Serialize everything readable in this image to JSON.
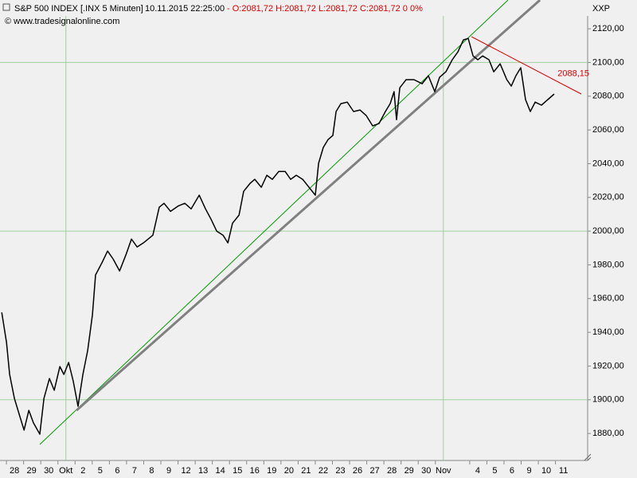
{
  "chart_data": {
    "type": "line",
    "title": "S&P 500 INDEX [.INX  5 Minuten]",
    "timestamp": "10.11.2015 22:25:00",
    "quote": "- O:2081,72 H:2081,72 L:2081,72 C:2081,72 0 0%",
    "source": "© www.tradesignalonline.com",
    "corner_label": "XXP",
    "xlim": [
      -0.84,
      33.41
    ],
    "ylim": [
      1864,
      2127.6
    ],
    "xticks": [
      {
        "value": 0,
        "label": "28"
      },
      {
        "value": 1,
        "label": "29"
      },
      {
        "value": 2,
        "label": "30"
      },
      {
        "value": 3,
        "label": "Okt"
      },
      {
        "value": 4,
        "label": "2"
      },
      {
        "value": 5,
        "label": "5"
      },
      {
        "value": 6,
        "label": "6"
      },
      {
        "value": 7,
        "label": "7"
      },
      {
        "value": 8,
        "label": "8"
      },
      {
        "value": 9,
        "label": "9"
      },
      {
        "value": 10,
        "label": "12"
      },
      {
        "value": 11,
        "label": "13"
      },
      {
        "value": 12,
        "label": "14"
      },
      {
        "value": 13,
        "label": "15"
      },
      {
        "value": 14,
        "label": "16"
      },
      {
        "value": 15,
        "label": "19"
      },
      {
        "value": 16,
        "label": "20"
      },
      {
        "value": 17,
        "label": "21"
      },
      {
        "value": 18,
        "label": "22"
      },
      {
        "value": 19,
        "label": "23"
      },
      {
        "value": 20,
        "label": "26"
      },
      {
        "value": 21,
        "label": "27"
      },
      {
        "value": 22,
        "label": "28"
      },
      {
        "value": 23,
        "label": "29"
      },
      {
        "value": 24,
        "label": "30"
      },
      {
        "value": 25,
        "label": "Nov"
      },
      {
        "value": 27,
        "label": "4"
      },
      {
        "value": 28,
        "label": "5"
      },
      {
        "value": 29,
        "label": "6"
      },
      {
        "value": 30,
        "label": "9"
      },
      {
        "value": 31,
        "label": "10"
      },
      {
        "value": 32,
        "label": "11"
      }
    ],
    "yticks": [
      {
        "value": 1880,
        "label": "1880,00"
      },
      {
        "value": 1900,
        "label": "1900,00"
      },
      {
        "value": 1920,
        "label": "1920,00"
      },
      {
        "value": 1940,
        "label": "1940,00"
      },
      {
        "value": 1960,
        "label": "1960,00"
      },
      {
        "value": 1980,
        "label": "1980,00"
      },
      {
        "value": 2000,
        "label": "2000,00"
      },
      {
        "value": 2020,
        "label": "2020,00"
      },
      {
        "value": 2040,
        "label": "2040,00"
      },
      {
        "value": 2060,
        "label": "2060,00"
      },
      {
        "value": 2080,
        "label": "2080,00"
      },
      {
        "value": 2100,
        "label": "2100,00"
      },
      {
        "value": 2120,
        "label": "2120,00"
      }
    ],
    "ygrid": [
      1900,
      2000,
      2100
    ],
    "xgrid": [
      3,
      25
    ],
    "series": [
      {
        "color": "#000000",
        "x": [
          -0.74,
          -0.46,
          -0.28,
          0,
          0.28,
          0.56,
          0.84,
          1.11,
          1.48,
          1.72,
          2.04,
          2.32,
          2.65,
          2.88,
          3.16,
          3.43,
          3.71,
          3.99,
          4.27,
          4.55,
          4.73,
          5.1,
          5.43,
          5.75,
          6.13,
          6.5,
          6.82,
          7.15,
          7.52,
          8.07,
          8.44,
          8.72,
          9.1,
          9.56,
          9.93,
          10.3,
          10.77,
          11.14,
          11.46,
          11.79,
          12.16,
          12.44,
          12.71,
          13.09,
          13.36,
          13.74,
          14.01,
          14.39,
          14.71,
          15.03,
          15.41,
          15.78,
          16.1,
          16.43,
          16.8,
          17.17,
          17.54,
          17.73,
          18.0,
          18.28,
          18.56,
          18.75,
          19.03,
          19.4,
          19.77,
          20.14,
          20.51,
          20.88,
          21.25,
          21.62,
          21.9,
          22.13,
          22.27,
          22.46,
          22.83,
          23.29,
          23.76,
          24.13,
          24.5,
          24.78,
          25.15,
          25.52,
          25.85,
          26.17,
          26.45,
          26.73,
          27.01,
          27.29,
          27.66,
          27.94,
          28.31,
          28.7,
          28.96,
          29.23,
          29.51,
          29.79,
          30.07,
          30.35,
          30.72,
          31.09,
          31.46
        ],
        "values": [
          1951.8,
          1933.9,
          1915,
          1900.8,
          1891.4,
          1882,
          1893.7,
          1886.3,
          1879.6,
          1900.8,
          1912.6,
          1905.6,
          1919.7,
          1915,
          1922.1,
          1911,
          1896.1,
          1915,
          1929.2,
          1950.4,
          1974,
          1981.2,
          1988.2,
          1983.5,
          1976.4,
          1986,
          1995.3,
          1990.6,
          1993,
          1997.6,
          2014.2,
          2016.5,
          2011.7,
          2015,
          2016.5,
          2013.2,
          2021.3,
          2013.2,
          2007.1,
          2000,
          1997.6,
          1993,
          2004.7,
          2009.5,
          2023.6,
          2028.4,
          2030.7,
          2026,
          2033.1,
          2030.7,
          2035.4,
          2035.4,
          2030.7,
          2033.1,
          2030.7,
          2026,
          2021.3,
          2040.2,
          2049.6,
          2054.3,
          2056.7,
          2070.9,
          2075.6,
          2076.5,
          2070.9,
          2071.8,
          2068.5,
          2062.4,
          2063.8,
          2070.9,
          2075.6,
          2082.7,
          2066.1,
          2085,
          2089.8,
          2089.8,
          2087.4,
          2092.1,
          2082.7,
          2091.2,
          2094.5,
          2101.6,
          2106.3,
          2113.4,
          2114.3,
          2103.9,
          2101.6,
          2103.9,
          2101.6,
          2094.5,
          2099.2,
          2089.8,
          2086,
          2092.1,
          2096.9,
          2078,
          2070.9,
          2076.5,
          2074.7,
          2078,
          2081.3
        ]
      }
    ],
    "trendlines": [
      {
        "color": "#009900",
        "width": 1,
        "x": [
          1.48,
          28.77
        ],
        "values": [
          1873.5,
          2137
        ]
      },
      {
        "color": "#808080",
        "width": 3,
        "x": [
          3.62,
          30.63
        ],
        "values": [
          1893.7,
          2137
        ]
      },
      {
        "color": "#dd0000",
        "width": 1,
        "x": [
          26.64,
          33.04
        ],
        "values": [
          2115.3,
          2081.3
        ],
        "label": "2088,15",
        "label_value": 2088.15
      }
    ]
  }
}
